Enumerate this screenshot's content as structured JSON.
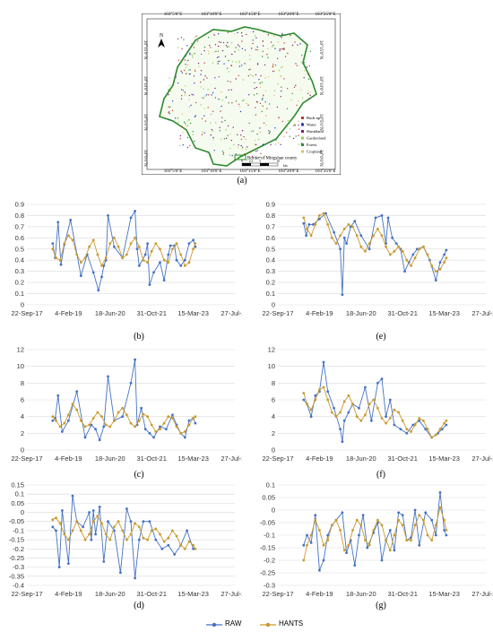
{
  "map": {
    "label": "(a)",
    "north": "N",
    "lon_ticks": [
      "103°5'0\"E",
      "103°10'0\"E",
      "103°15'0\"E",
      "103°20'0\"E",
      "103°25'0\"E"
    ],
    "lat_ticks": [
      "30°15'0\"N",
      "30°10'0\"N",
      "30°5'0\"N",
      "30°0'0\"N"
    ],
    "legend": [
      {
        "label": "Built-up",
        "color": "#c0392b"
      },
      {
        "label": "Water",
        "color": "#1f3fbf"
      },
      {
        "label": "Shrubland",
        "color": "#7a1f7a"
      },
      {
        "label": "Gardenland",
        "color": "#8fd14f"
      },
      {
        "label": "Forest",
        "color": "#2e8b3a"
      },
      {
        "label": "Cropland",
        "color": "#e0c060"
      }
    ],
    "border_label": "Border of Mingshan county",
    "border_color": "#2e8b2e",
    "scale_ticks": [
      "0",
      "2.5",
      "5",
      "10"
    ],
    "scale_unit": "km"
  },
  "legend": {
    "raw_label": "RAW",
    "hants_label": "HANTS",
    "raw_color": "#4472c4",
    "hants_color": "#c99a2e"
  },
  "chart_data": [
    {
      "id": "b",
      "label": "(b)",
      "type": "line",
      "ylim": [
        0,
        0.9
      ],
      "yticks": [
        "0",
        "0.1",
        "0.2",
        "0.3",
        "0.4",
        "0.5",
        "0.6",
        "0.7",
        "0.8",
        "0.9"
      ],
      "xticks": [
        "22-Sep-17",
        "4-Feb-19",
        "18-Jun-20",
        "31-Oct-21",
        "15-Mar-23",
        "27-Jul-24"
      ],
      "series": [
        {
          "name": "RAW",
          "x": [
            0.62,
            0.68,
            0.75,
            0.82,
            0.9,
            1.05,
            1.3,
            1.45,
            1.6,
            1.72,
            1.8,
            1.85,
            1.9,
            1.95,
            2.1,
            2.3,
            2.5,
            2.6,
            2.65,
            2.7,
            2.85,
            2.9,
            2.95,
            3.05,
            3.2,
            3.3,
            3.4,
            3.45,
            3.55,
            3.6,
            3.7,
            3.8,
            3.9,
            4.0,
            4.05
          ],
          "y": [
            0.55,
            0.42,
            0.74,
            0.36,
            0.54,
            0.76,
            0.26,
            0.45,
            0.29,
            0.13,
            0.25,
            0.35,
            0.4,
            0.8,
            0.52,
            0.42,
            0.78,
            0.84,
            0.5,
            0.35,
            0.45,
            0.55,
            0.18,
            0.29,
            0.38,
            0.22,
            0.45,
            0.53,
            0.53,
            0.4,
            0.35,
            0.4,
            0.55,
            0.58,
            0.52
          ]
        },
        {
          "name": "HANTS",
          "x": [
            0.62,
            0.7,
            0.8,
            0.9,
            1.0,
            1.1,
            1.2,
            1.3,
            1.4,
            1.5,
            1.6,
            1.7,
            1.8,
            1.9,
            2.0,
            2.1,
            2.2,
            2.3,
            2.4,
            2.5,
            2.6,
            2.7,
            2.8,
            2.9,
            3.0,
            3.1,
            3.2,
            3.3,
            3.4,
            3.5,
            3.6,
            3.7,
            3.8,
            3.9,
            4.0,
            4.05
          ],
          "y": [
            0.5,
            0.42,
            0.4,
            0.55,
            0.62,
            0.58,
            0.45,
            0.38,
            0.42,
            0.52,
            0.58,
            0.45,
            0.35,
            0.42,
            0.55,
            0.6,
            0.52,
            0.42,
            0.45,
            0.55,
            0.6,
            0.52,
            0.4,
            0.38,
            0.48,
            0.55,
            0.5,
            0.4,
            0.38,
            0.5,
            0.55,
            0.45,
            0.35,
            0.38,
            0.5,
            0.55
          ]
        }
      ]
    },
    {
      "id": "e",
      "label": "(e)",
      "type": "line",
      "ylim": [
        0,
        0.9
      ],
      "yticks": [
        "0",
        "0.1",
        "0.2",
        "0.3",
        "0.4",
        "0.5",
        "0.6",
        "0.7",
        "0.8",
        "0.9"
      ],
      "xticks": [
        "22-Sep-17",
        "4-Feb-19",
        "18-Jun-20",
        "31-Oct-21",
        "15-Mar-23",
        "27-Jul-24"
      ],
      "series": [
        {
          "name": "RAW",
          "x": [
            0.62,
            0.68,
            0.75,
            0.85,
            1.0,
            1.15,
            1.35,
            1.5,
            1.55,
            1.6,
            1.65,
            1.75,
            1.85,
            2.0,
            2.2,
            2.35,
            2.5,
            2.6,
            2.65,
            2.75,
            2.85,
            2.95,
            3.05,
            3.15,
            3.25,
            3.35,
            3.5,
            3.65,
            3.8,
            3.9,
            4.0,
            4.05
          ],
          "y": [
            0.73,
            0.62,
            0.72,
            0.72,
            0.77,
            0.82,
            0.65,
            0.5,
            0.09,
            0.6,
            0.55,
            0.7,
            0.75,
            0.62,
            0.5,
            0.78,
            0.8,
            0.55,
            0.78,
            0.6,
            0.55,
            0.5,
            0.3,
            0.38,
            0.45,
            0.5,
            0.52,
            0.4,
            0.22,
            0.38,
            0.45,
            0.49
          ]
        },
        {
          "name": "HANTS",
          "x": [
            0.62,
            0.7,
            0.8,
            0.9,
            1.0,
            1.1,
            1.2,
            1.3,
            1.4,
            1.5,
            1.6,
            1.7,
            1.8,
            1.9,
            2.0,
            2.1,
            2.2,
            2.3,
            2.4,
            2.5,
            2.6,
            2.7,
            2.8,
            2.9,
            3.0,
            3.1,
            3.2,
            3.3,
            3.4,
            3.5,
            3.6,
            3.7,
            3.8,
            3.9,
            4.0,
            4.05
          ],
          "y": [
            0.78,
            0.68,
            0.62,
            0.72,
            0.8,
            0.82,
            0.72,
            0.6,
            0.55,
            0.62,
            0.68,
            0.72,
            0.7,
            0.62,
            0.52,
            0.48,
            0.55,
            0.62,
            0.68,
            0.62,
            0.52,
            0.45,
            0.48,
            0.52,
            0.48,
            0.4,
            0.35,
            0.42,
            0.5,
            0.52,
            0.45,
            0.35,
            0.3,
            0.32,
            0.38,
            0.42
          ]
        }
      ]
    },
    {
      "id": "c",
      "label": "(c)",
      "type": "line",
      "ylim": [
        0,
        12
      ],
      "yticks": [
        "0",
        "2",
        "4",
        "6",
        "8",
        "10",
        "12"
      ],
      "xticks": [
        "22-Sep-17",
        "4-Feb-19",
        "18-Jun-20",
        "31-Oct-21",
        "15-Mar-23",
        "27-Jul-24"
      ],
      "series": [
        {
          "name": "RAW",
          "x": [
            0.62,
            0.68,
            0.75,
            0.85,
            1.0,
            1.2,
            1.4,
            1.55,
            1.65,
            1.75,
            1.85,
            1.95,
            2.1,
            2.3,
            2.5,
            2.6,
            2.65,
            2.75,
            2.85,
            2.95,
            3.05,
            3.2,
            3.35,
            3.5,
            3.6,
            3.7,
            3.8,
            3.9,
            4.0,
            4.05
          ],
          "y": [
            3.5,
            3.8,
            6.5,
            2.2,
            3.5,
            7.0,
            1.5,
            3.0,
            2.5,
            1.2,
            2.8,
            8.8,
            3.5,
            4.0,
            8.0,
            10.8,
            3.0,
            5.0,
            2.5,
            2.0,
            1.5,
            2.8,
            2.5,
            4.2,
            3.0,
            2.0,
            1.5,
            3.5,
            3.8,
            3.2
          ]
        },
        {
          "name": "HANTS",
          "x": [
            0.62,
            0.7,
            0.8,
            0.9,
            1.0,
            1.1,
            1.2,
            1.3,
            1.4,
            1.5,
            1.6,
            1.7,
            1.8,
            1.9,
            2.0,
            2.1,
            2.2,
            2.3,
            2.4,
            2.5,
            2.6,
            2.7,
            2.8,
            2.9,
            3.0,
            3.1,
            3.2,
            3.3,
            3.4,
            3.5,
            3.6,
            3.7,
            3.8,
            3.9,
            4.0,
            4.05
          ],
          "y": [
            4.0,
            3.5,
            2.8,
            3.2,
            4.2,
            5.5,
            4.8,
            3.5,
            2.8,
            3.0,
            3.8,
            4.5,
            4.0,
            3.0,
            2.8,
            3.5,
            4.5,
            5.0,
            4.2,
            3.2,
            2.8,
            3.5,
            4.3,
            4.0,
            3.0,
            2.2,
            2.5,
            3.2,
            4.0,
            3.8,
            2.8,
            2.0,
            2.2,
            3.0,
            3.8,
            4.0
          ]
        }
      ]
    },
    {
      "id": "f",
      "label": "(f)",
      "type": "line",
      "ylim": [
        0,
        12
      ],
      "yticks": [
        "0",
        "2",
        "4",
        "6",
        "8",
        "10",
        "12"
      ],
      "xticks": [
        "22-Sep-17",
        "4-Feb-19",
        "18-Jun-20",
        "31-Oct-21",
        "15-Mar-23",
        "27-Jul-24"
      ],
      "series": [
        {
          "name": "RAW",
          "x": [
            0.62,
            0.7,
            0.8,
            0.9,
            1.0,
            1.1,
            1.2,
            1.35,
            1.5,
            1.55,
            1.6,
            1.7,
            1.8,
            1.95,
            2.1,
            2.25,
            2.4,
            2.5,
            2.6,
            2.7,
            2.8,
            2.95,
            3.1,
            3.25,
            3.4,
            3.55,
            3.7,
            3.85,
            3.95,
            4.05
          ],
          "y": [
            6.0,
            5.5,
            4.0,
            6.5,
            7.0,
            10.5,
            7.0,
            5.0,
            2.5,
            1.0,
            3.5,
            4.5,
            5.5,
            5.0,
            7.5,
            3.5,
            8.0,
            8.5,
            4.0,
            6.0,
            3.0,
            2.5,
            2.0,
            3.0,
            3.5,
            2.5,
            1.5,
            2.0,
            2.5,
            3.0
          ]
        },
        {
          "name": "HANTS",
          "x": [
            0.62,
            0.7,
            0.8,
            0.9,
            1.0,
            1.1,
            1.2,
            1.3,
            1.4,
            1.5,
            1.6,
            1.7,
            1.8,
            1.9,
            2.0,
            2.1,
            2.2,
            2.3,
            2.4,
            2.5,
            2.6,
            2.7,
            2.8,
            2.9,
            3.0,
            3.1,
            3.2,
            3.3,
            3.4,
            3.5,
            3.6,
            3.7,
            3.8,
            3.9,
            4.0,
            4.05
          ],
          "y": [
            6.8,
            5.5,
            4.8,
            6.0,
            7.2,
            7.5,
            6.0,
            4.5,
            4.0,
            4.5,
            5.8,
            6.5,
            5.5,
            4.0,
            3.5,
            4.2,
            5.5,
            6.0,
            5.0,
            3.8,
            3.2,
            3.8,
            4.8,
            4.5,
            3.5,
            2.5,
            2.2,
            3.0,
            3.8,
            3.5,
            2.5,
            1.5,
            1.8,
            2.5,
            3.2,
            3.5
          ]
        }
      ]
    },
    {
      "id": "d",
      "label": "(d)",
      "type": "line",
      "ylim": [
        -0.4,
        0.15
      ],
      "yticks": [
        "-0.4",
        "-0.35",
        "-0.3",
        "-0.25",
        "-0.2",
        "-0.15",
        "-0.1",
        "-0.05",
        "0",
        "0.05",
        "0.1",
        "0.15"
      ],
      "xticks": [
        "22-Sep-17",
        "4-Feb-19",
        "18-Jun-20",
        "31-Oct-21",
        "15-Mar-23",
        "27-Jul-24"
      ],
      "series": [
        {
          "name": "RAW",
          "x": [
            0.62,
            0.7,
            0.78,
            0.85,
            1.0,
            1.1,
            1.2,
            1.35,
            1.5,
            1.55,
            1.6,
            1.65,
            1.75,
            1.85,
            1.95,
            2.1,
            2.25,
            2.4,
            2.5,
            2.6,
            2.7,
            2.8,
            2.95,
            3.1,
            3.25,
            3.4,
            3.55,
            3.7,
            3.85,
            4.0
          ],
          "y": [
            -0.08,
            -0.1,
            -0.3,
            0.01,
            -0.28,
            0.09,
            -0.05,
            -0.08,
            0.0,
            -0.15,
            0.01,
            -0.12,
            0.03,
            -0.27,
            -0.05,
            -0.1,
            -0.33,
            0.02,
            -0.05,
            -0.36,
            -0.15,
            -0.05,
            -0.05,
            -0.15,
            -0.2,
            -0.18,
            -0.23,
            -0.18,
            -0.1,
            -0.2
          ]
        },
        {
          "name": "HANTS",
          "x": [
            0.62,
            0.7,
            0.8,
            0.9,
            1.0,
            1.1,
            1.2,
            1.3,
            1.4,
            1.5,
            1.6,
            1.7,
            1.8,
            1.9,
            2.0,
            2.1,
            2.2,
            2.3,
            2.4,
            2.5,
            2.6,
            2.7,
            2.8,
            2.9,
            3.0,
            3.1,
            3.2,
            3.3,
            3.4,
            3.5,
            3.6,
            3.7,
            3.8,
            3.9,
            4.0,
            4.05
          ],
          "y": [
            -0.04,
            -0.03,
            -0.06,
            -0.12,
            -0.15,
            -0.1,
            -0.05,
            -0.1,
            -0.15,
            -0.12,
            -0.05,
            -0.02,
            -0.06,
            -0.12,
            -0.15,
            -0.08,
            -0.05,
            -0.1,
            -0.15,
            -0.12,
            -0.06,
            -0.08,
            -0.14,
            -0.15,
            -0.1,
            -0.09,
            -0.12,
            -0.16,
            -0.14,
            -0.1,
            -0.13,
            -0.18,
            -0.2,
            -0.16,
            -0.18,
            -0.2
          ]
        }
      ]
    },
    {
      "id": "g",
      "label": "(g)",
      "type": "line",
      "ylim": [
        -0.3,
        0.1
      ],
      "yticks": [
        "-0.3",
        "-0.25",
        "-0.2",
        "-0.15",
        "-0.1",
        "-0.05",
        "0",
        "0.05",
        "0.1"
      ],
      "xticks": [
        "22-Sep-17",
        "4-Feb-19",
        "18-Jun-20",
        "31-Oct-21",
        "15-Mar-23",
        "27-Jul-24"
      ],
      "series": [
        {
          "name": "RAW",
          "x": [
            0.62,
            0.7,
            0.8,
            0.9,
            1.0,
            1.1,
            1.2,
            1.3,
            1.4,
            1.55,
            1.65,
            1.75,
            1.85,
            1.95,
            2.05,
            2.15,
            2.3,
            2.4,
            2.5,
            2.6,
            2.7,
            2.8,
            2.9,
            3.0,
            3.1,
            3.2,
            3.3,
            3.4,
            3.55,
            3.7,
            3.8,
            3.9,
            4.0,
            4.05
          ],
          "y": [
            -0.14,
            -0.1,
            -0.13,
            -0.02,
            -0.24,
            -0.2,
            -0.1,
            -0.06,
            -0.04,
            -0.01,
            -0.17,
            -0.12,
            -0.22,
            -0.1,
            -0.02,
            -0.15,
            -0.09,
            -0.05,
            -0.2,
            -0.12,
            -0.08,
            -0.16,
            -0.01,
            -0.02,
            -0.12,
            -0.11,
            0.0,
            -0.14,
            -0.01,
            -0.04,
            -0.1,
            0.07,
            -0.08,
            -0.1
          ]
        },
        {
          "name": "HANTS",
          "x": [
            0.62,
            0.7,
            0.8,
            0.9,
            1.0,
            1.1,
            1.2,
            1.3,
            1.4,
            1.5,
            1.6,
            1.7,
            1.8,
            1.9,
            2.0,
            2.1,
            2.2,
            2.3,
            2.4,
            2.5,
            2.6,
            2.7,
            2.8,
            2.9,
            3.0,
            3.1,
            3.2,
            3.3,
            3.4,
            3.5,
            3.6,
            3.7,
            3.8,
            3.9,
            4.0,
            4.05
          ],
          "y": [
            -0.2,
            -0.14,
            -0.1,
            -0.04,
            -0.08,
            -0.14,
            -0.12,
            -0.06,
            -0.04,
            -0.08,
            -0.16,
            -0.14,
            -0.08,
            -0.04,
            -0.06,
            -0.12,
            -0.14,
            -0.08,
            -0.04,
            -0.06,
            -0.12,
            -0.16,
            -0.1,
            -0.04,
            -0.06,
            -0.12,
            -0.12,
            -0.06,
            -0.02,
            -0.04,
            -0.1,
            -0.12,
            -0.06,
            0.01,
            -0.04,
            -0.08
          ]
        }
      ]
    }
  ]
}
